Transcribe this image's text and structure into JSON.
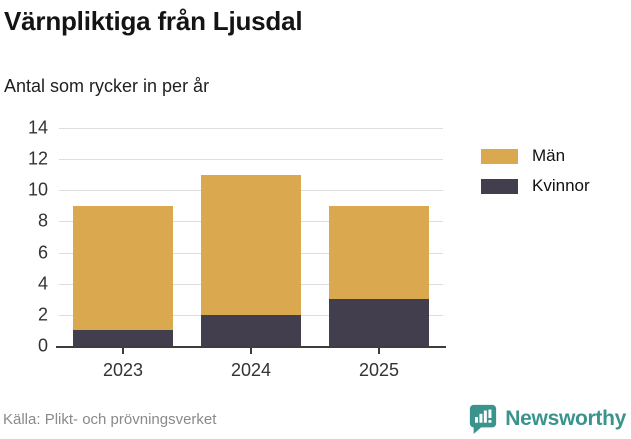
{
  "header": {
    "title": "Värnpliktiga från Ljusdal",
    "subtitle": "Antal som rycker in per år"
  },
  "chart_data": {
    "type": "bar",
    "stacked": true,
    "title": "Värnpliktiga från Ljusdal",
    "subtitle": "Antal som rycker in per år",
    "categories": [
      "2023",
      "2024",
      "2025"
    ],
    "series": [
      {
        "name": "Män",
        "color": "#D9A84F",
        "values": [
          8,
          9,
          6
        ]
      },
      {
        "name": "Kvinnor",
        "color": "#423E4E",
        "values": [
          1,
          2,
          3
        ]
      }
    ],
    "totals": [
      9,
      11,
      9
    ],
    "xlabel": "",
    "ylabel": "",
    "ylim": [
      0,
      14
    ],
    "yticks": [
      0,
      2,
      4,
      6,
      8,
      10,
      12,
      14
    ],
    "grid": true,
    "legend_position": "right"
  },
  "legend": {
    "items": [
      {
        "label": "Män",
        "color": "#D9A84F"
      },
      {
        "label": "Kvinnor",
        "color": "#423E4E"
      }
    ]
  },
  "footer": {
    "source": "Källa: Plikt- och prövningsverket",
    "brand": "Newsworthy"
  },
  "colors": {
    "men": "#D9A84F",
    "women": "#423E4E",
    "brand_teal": "#3A948D",
    "gridline": "#DEDEDE",
    "axis": "#3D3D3D",
    "text_dark": "#333333",
    "source_gray": "#8A8A8A"
  },
  "icons": {
    "brand_logo": "newsworthy-speech-bubble-barchart-icon"
  }
}
